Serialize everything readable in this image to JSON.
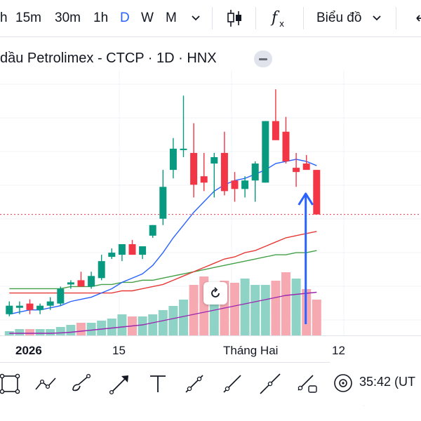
{
  "toolbar": {
    "intervals": [
      "h",
      "15m",
      "30m",
      "1h",
      "D",
      "W",
      "M"
    ],
    "active_interval": "D",
    "chart_type_label": "Biểu đồ"
  },
  "legend": {
    "title": "dầu Petrolimex - CTCP · 1D · HNX"
  },
  "x_axis": {
    "labels": [
      "2026",
      "15",
      "Tháng Hai",
      "12"
    ]
  },
  "footer": {
    "time_text": "35:42 (UT"
  },
  "colors": {
    "up": "#089981",
    "down": "#f23645",
    "up_volume": "#8fd3c6",
    "down_volume": "#f7a9b2",
    "ma_blue": "#2962ff",
    "ma_red": "#e53935",
    "ma_green": "#43a047",
    "ma_purple": "#9c27b0",
    "arrow": "#2962ff",
    "price_line": "#f23645",
    "active": "#2962ff"
  },
  "chart_data": {
    "type": "candlestick",
    "candles": [
      {
        "o": 10.0,
        "h": 10.6,
        "l": 9.9,
        "c": 10.4
      },
      {
        "o": 10.3,
        "h": 10.6,
        "l": 10.0,
        "c": 10.4
      },
      {
        "o": 10.5,
        "h": 10.7,
        "l": 10.0,
        "c": 10.2
      },
      {
        "o": 10.2,
        "h": 10.5,
        "l": 10.0,
        "c": 10.4
      },
      {
        "o": 10.4,
        "h": 10.8,
        "l": 10.2,
        "c": 10.6
      },
      {
        "o": 10.5,
        "h": 11.3,
        "l": 10.4,
        "c": 11.2
      },
      {
        "o": 11.4,
        "h": 11.6,
        "l": 11.2,
        "c": 11.5
      },
      {
        "o": 11.6,
        "h": 12.0,
        "l": 11.3,
        "c": 11.3
      },
      {
        "o": 11.3,
        "h": 12.0,
        "l": 11.2,
        "c": 11.8
      },
      {
        "o": 11.7,
        "h": 12.8,
        "l": 11.6,
        "c": 12.5
      },
      {
        "o": 12.7,
        "h": 13.1,
        "l": 12.6,
        "c": 12.9
      },
      {
        "o": 12.8,
        "h": 13.3,
        "l": 12.5,
        "c": 13.3
      },
      {
        "o": 13.3,
        "h": 13.5,
        "l": 12.8,
        "c": 12.8
      },
      {
        "o": 12.8,
        "h": 13.2,
        "l": 12.6,
        "c": 13.2
      },
      {
        "o": 13.7,
        "h": 14.2,
        "l": 13.6,
        "c": 14.2
      },
      {
        "o": 14.5,
        "h": 16.8,
        "l": 14.2,
        "c": 16.0
      },
      {
        "o": 16.8,
        "h": 18.3,
        "l": 16.4,
        "c": 17.8
      },
      {
        "o": 17.8,
        "h": 20.3,
        "l": 17.4,
        "c": 17.8
      },
      {
        "o": 17.6,
        "h": 19.0,
        "l": 15.5,
        "c": 16.1
      },
      {
        "o": 16.5,
        "h": 17.6,
        "l": 15.8,
        "c": 16.2
      },
      {
        "o": 17.1,
        "h": 17.6,
        "l": 15.5,
        "c": 17.4
      },
      {
        "o": 17.6,
        "h": 18.6,
        "l": 15.6,
        "c": 15.8
      },
      {
        "o": 16.3,
        "h": 16.7,
        "l": 15.3,
        "c": 15.9
      },
      {
        "o": 15.9,
        "h": 16.5,
        "l": 15.5,
        "c": 16.3
      },
      {
        "o": 16.3,
        "h": 17.2,
        "l": 15.3,
        "c": 17.1
      },
      {
        "o": 16.2,
        "h": 19.1,
        "l": 16.2,
        "c": 19.1
      },
      {
        "o": 19.1,
        "h": 20.6,
        "l": 18.3,
        "c": 18.2
      },
      {
        "o": 18.6,
        "h": 19.3,
        "l": 17.1,
        "c": 17.2
      },
      {
        "o": 16.9,
        "h": 17.6,
        "l": 16.0,
        "c": 16.7
      },
      {
        "o": 17.1,
        "h": 17.5,
        "l": 16.8,
        "c": 16.8
      },
      {
        "o": 16.8,
        "h": 16.8,
        "l": 14.7,
        "c": 14.7
      }
    ],
    "volumes": [
      2,
      3,
      3,
      3,
      3,
      4,
      5,
      6,
      6,
      7,
      8,
      10,
      9,
      9,
      10,
      12,
      14,
      17,
      24,
      28,
      25,
      26,
      25,
      27,
      24,
      24,
      26,
      30,
      27,
      22,
      17
    ],
    "volume_up_flags": [
      1,
      1,
      0,
      1,
      1,
      1,
      1,
      0,
      1,
      1,
      1,
      1,
      0,
      1,
      1,
      1,
      1,
      1,
      0,
      0,
      1,
      0,
      0,
      1,
      1,
      1,
      0,
      0,
      1,
      0,
      0
    ],
    "ma_blue": [
      10.0,
      10.1,
      10.2,
      10.2,
      10.3,
      10.4,
      10.6,
      10.7,
      10.8,
      11.0,
      11.2,
      11.5,
      11.7,
      11.9,
      12.3,
      12.9,
      13.6,
      14.2,
      14.8,
      15.3,
      15.8,
      16.1,
      16.3,
      16.4,
      16.6,
      16.8,
      17.1,
      17.2,
      17.3,
      17.2,
      17.0
    ],
    "ma_red": [
      11.0,
      11.0,
      11.0,
      11.0,
      11.0,
      11.0,
      11.0,
      11.0,
      11.0,
      11.0,
      11.0,
      11.1,
      11.1,
      11.2,
      11.3,
      11.4,
      11.6,
      11.8,
      12.0,
      12.2,
      12.4,
      12.6,
      12.7,
      12.9,
      13.0,
      13.2,
      13.4,
      13.6,
      13.7,
      13.8,
      13.9
    ],
    "ma_green": [
      11.2,
      11.2,
      11.2,
      11.2,
      11.2,
      11.2,
      11.3,
      11.3,
      11.3,
      11.4,
      11.4,
      11.5,
      11.5,
      11.6,
      11.6,
      11.7,
      11.8,
      11.9,
      12.0,
      12.1,
      12.2,
      12.3,
      12.4,
      12.5,
      12.6,
      12.7,
      12.8,
      12.8,
      12.9,
      12.9,
      13.0
    ],
    "ma_purple_volume": [
      1,
      1,
      1,
      1,
      1,
      1.2,
      1.5,
      2,
      2.5,
      3,
      3.5,
      4,
      4.5,
      5,
      6,
      7,
      8,
      9,
      10,
      11,
      12,
      13,
      14,
      15,
      16,
      17,
      18,
      19,
      19.5,
      20,
      20.5
    ],
    "last_price": 14.7,
    "ylim": [
      9.0,
      21.5
    ],
    "vol_max": 40
  }
}
